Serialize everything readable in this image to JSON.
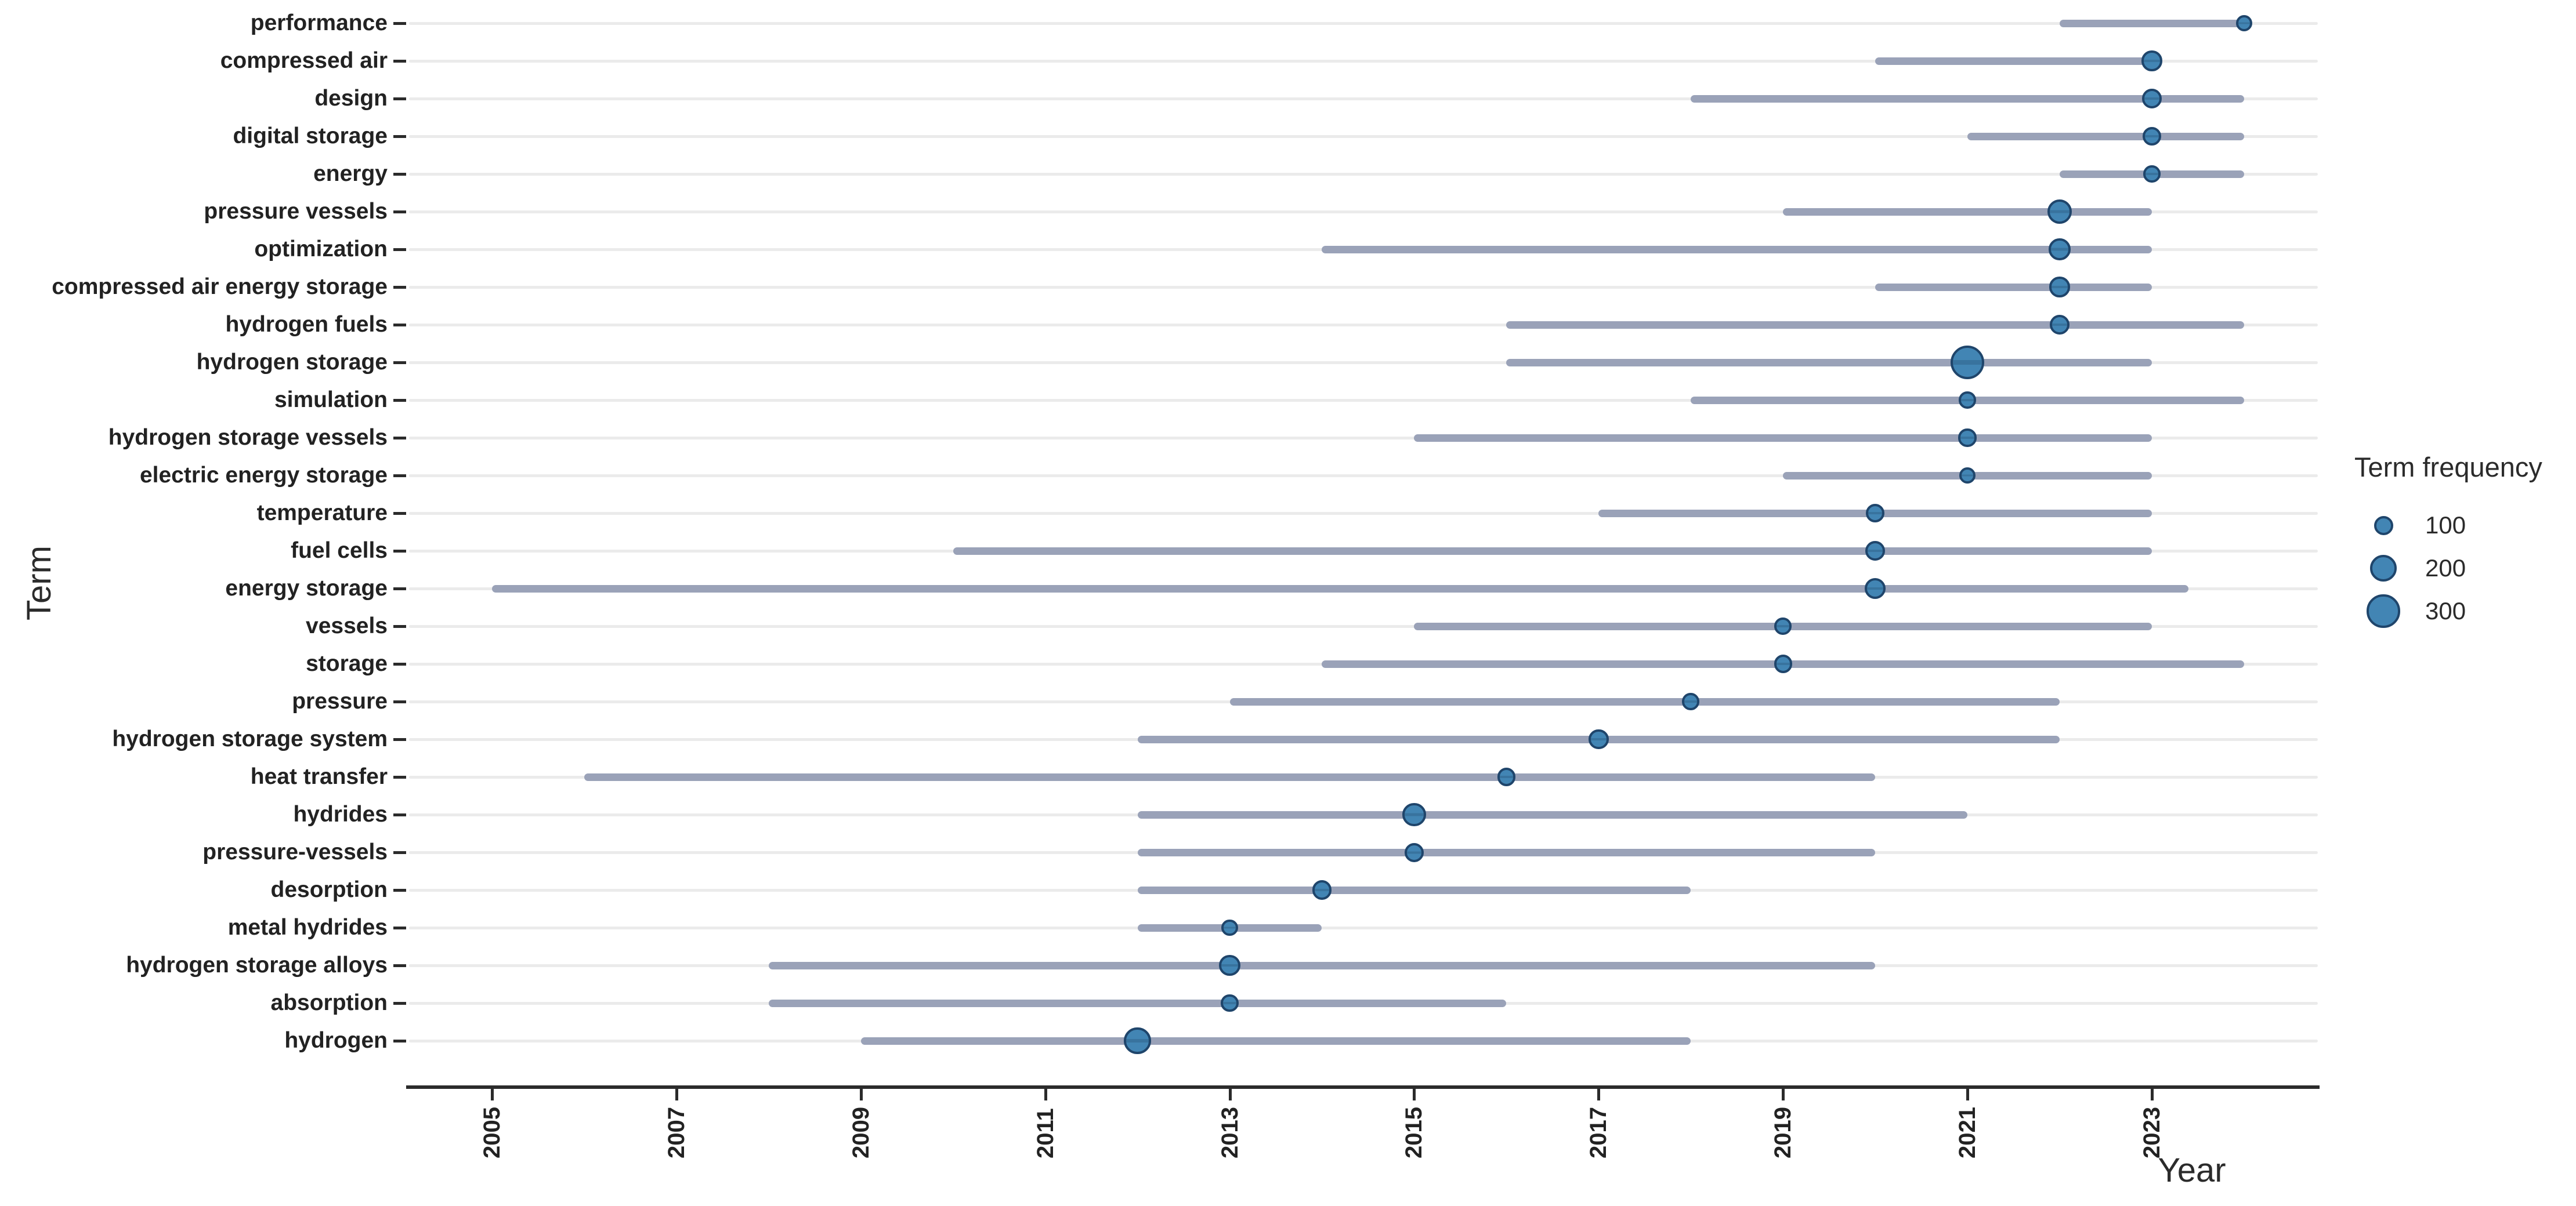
{
  "chart_data": {
    "type": "scatter",
    "subtype": "bubble-with-range-lines",
    "title": "",
    "xlabel": "Year",
    "ylabel": "Term",
    "xlim": [
      2004.1,
      2024.8
    ],
    "x_ticks": [
      2005,
      2007,
      2009,
      2011,
      2013,
      2015,
      2017,
      2019,
      2021,
      2023
    ],
    "grid": "horizontal-only",
    "legend": {
      "title": "Term frequency",
      "sizes": [
        100,
        200,
        300
      ],
      "position": "right"
    },
    "rows": [
      {
        "term": "performance",
        "start": 2022,
        "end": 2024,
        "peak": 2024,
        "freq": 75
      },
      {
        "term": "compressed air",
        "start": 2020,
        "end": 2023,
        "peak": 2023,
        "freq": 115
      },
      {
        "term": "design",
        "start": 2018,
        "end": 2024,
        "peak": 2023,
        "freq": 105
      },
      {
        "term": "digital storage",
        "start": 2021,
        "end": 2024,
        "peak": 2023,
        "freq": 95
      },
      {
        "term": "energy",
        "start": 2022,
        "end": 2024,
        "peak": 2023,
        "freq": 80
      },
      {
        "term": "pressure vessels",
        "start": 2019,
        "end": 2023,
        "peak": 2022,
        "freq": 165
      },
      {
        "term": "optimization",
        "start": 2014,
        "end": 2023,
        "peak": 2022,
        "freq": 130
      },
      {
        "term": "compressed air energy storage",
        "start": 2020,
        "end": 2023,
        "peak": 2022,
        "freq": 115
      },
      {
        "term": "hydrogen fuels",
        "start": 2016,
        "end": 2024,
        "peak": 2022,
        "freq": 105
      },
      {
        "term": "hydrogen storage",
        "start": 2016,
        "end": 2023,
        "peak": 2021,
        "freq": 310
      },
      {
        "term": "simulation",
        "start": 2018,
        "end": 2024,
        "peak": 2021,
        "freq": 80
      },
      {
        "term": "hydrogen storage vessels",
        "start": 2015,
        "end": 2023,
        "peak": 2021,
        "freq": 90
      },
      {
        "term": "electric energy storage",
        "start": 2019,
        "end": 2023,
        "peak": 2021,
        "freq": 75
      },
      {
        "term": "temperature",
        "start": 2017,
        "end": 2023,
        "peak": 2020,
        "freq": 95
      },
      {
        "term": "fuel cells",
        "start": 2010,
        "end": 2023,
        "peak": 2020,
        "freq": 105
      },
      {
        "term": "energy storage",
        "start": 2005,
        "end": 2023.4,
        "peak": 2020,
        "freq": 120
      },
      {
        "term": "vessels",
        "start": 2015,
        "end": 2023,
        "peak": 2019,
        "freq": 80
      },
      {
        "term": "storage",
        "start": 2014,
        "end": 2024,
        "peak": 2019,
        "freq": 90
      },
      {
        "term": "pressure",
        "start": 2013,
        "end": 2022,
        "peak": 2018,
        "freq": 80
      },
      {
        "term": "hydrogen storage system",
        "start": 2012,
        "end": 2022,
        "peak": 2017,
        "freq": 110
      },
      {
        "term": "heat transfer",
        "start": 2006,
        "end": 2020,
        "peak": 2016,
        "freq": 90
      },
      {
        "term": "hydrides",
        "start": 2012,
        "end": 2021,
        "peak": 2015,
        "freq": 150
      },
      {
        "term": "pressure-vessels",
        "start": 2012,
        "end": 2020,
        "peak": 2015,
        "freq": 100
      },
      {
        "term": "desorption",
        "start": 2012,
        "end": 2018,
        "peak": 2014,
        "freq": 105
      },
      {
        "term": "metal hydrides",
        "start": 2012,
        "end": 2014,
        "peak": 2013,
        "freq": 75
      },
      {
        "term": "hydrogen storage alloys",
        "start": 2008,
        "end": 2020,
        "peak": 2013,
        "freq": 120
      },
      {
        "term": "absorption",
        "start": 2008,
        "end": 2016,
        "peak": 2013,
        "freq": 85
      },
      {
        "term": "hydrogen",
        "start": 2009,
        "end": 2018,
        "peak": 2012,
        "freq": 200
      }
    ],
    "colors": {
      "dot_fill": "#4285b4",
      "dot_fill_dark": "#38739e",
      "dot_stroke": "#1f456b",
      "segment": "#9aa2b8",
      "gridline": "#ebebeb",
      "axis": "#2b2b2b",
      "text": "#222222"
    }
  }
}
